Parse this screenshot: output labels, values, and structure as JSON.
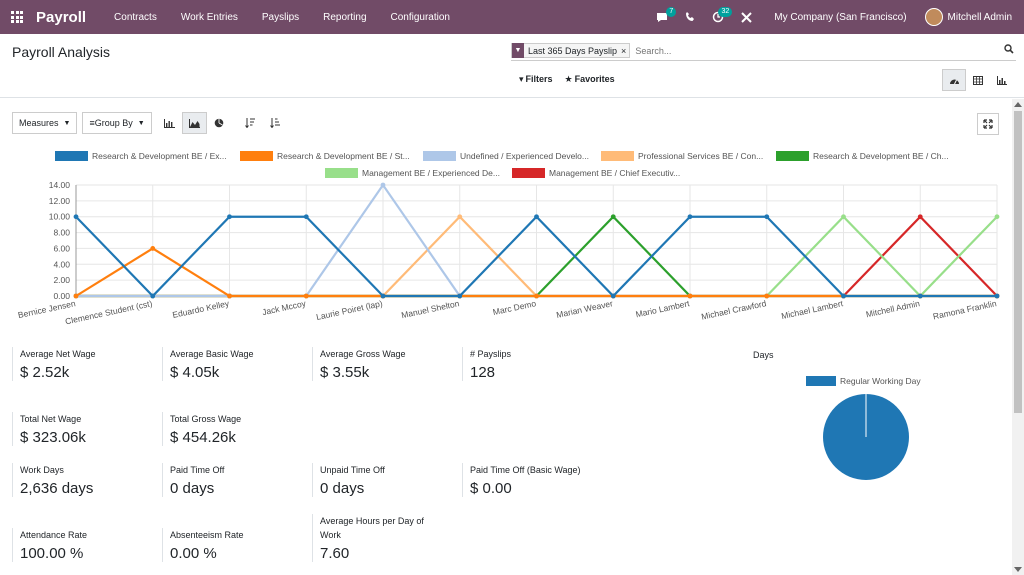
{
  "navbar": {
    "brand": "Payroll",
    "menu": [
      "Contracts",
      "Work Entries",
      "Payslips",
      "Reporting",
      "Configuration"
    ],
    "messages_badge": "7",
    "activities_badge": "32",
    "company": "My Company (San Francisco)",
    "user": "Mitchell Admin"
  },
  "control_panel": {
    "title": "Payroll Analysis",
    "facet": "Last 365 Days Payslip",
    "search_placeholder": "Search...",
    "filters_label": "Filters",
    "favorites_label": "Favorites"
  },
  "toolbar": {
    "measures_label": "Measures",
    "group_by_label": "Group By"
  },
  "chart_data": {
    "type": "line",
    "categories": [
      "Bernice Jensen",
      "Clemence Student (cst)",
      "Eduardo Kelley",
      "Jack Mccoy",
      "Laurie Poiret (lap)",
      "Manuel Shelton",
      "Marc Demo",
      "Marian Weaver",
      "Mario Lambert",
      "Michael Crawford",
      "Michael Lambert",
      "Mitchell Admin",
      "Ramona Franklin"
    ],
    "ylim": [
      0,
      14
    ],
    "yticks": [
      "0.00",
      "2.00",
      "4.00",
      "6.00",
      "8.00",
      "10.00",
      "12.00",
      "14.00"
    ],
    "grid": true,
    "legend_placement": "top",
    "series": [
      {
        "name": "Research & Development BE / Ex...",
        "color": "#1f77b4",
        "values": [
          10,
          0,
          10,
          10,
          0,
          0,
          10,
          0,
          10,
          10,
          0,
          0,
          0
        ]
      },
      {
        "name": "Research & Development BE / St...",
        "color": "#ff7f0e",
        "values": [
          0,
          6,
          0,
          0,
          0,
          0,
          0,
          0,
          0,
          0,
          0,
          0,
          0
        ]
      },
      {
        "name": "Undefined / Experienced Develo...",
        "color": "#aec7e8",
        "values": [
          0,
          0,
          0,
          0,
          14,
          0,
          0,
          0,
          0,
          0,
          0,
          0,
          0
        ]
      },
      {
        "name": "Professional Services BE / Con...",
        "color": "#ffbb78",
        "values": [
          0,
          0,
          0,
          0,
          0,
          10,
          0,
          0,
          0,
          0,
          0,
          0,
          0
        ]
      },
      {
        "name": "Research & Development BE / Ch...",
        "color": "#2ca02c",
        "values": [
          0,
          0,
          0,
          0,
          0,
          0,
          0,
          10,
          0,
          0,
          0,
          0,
          0
        ]
      },
      {
        "name": "Management BE / Experienced De...",
        "color": "#98df8a",
        "values": [
          0,
          0,
          0,
          0,
          0,
          0,
          0,
          0,
          0,
          0,
          10,
          0,
          10
        ]
      },
      {
        "name": "Management BE / Chief Executiv...",
        "color": "#d62728",
        "values": [
          0,
          0,
          0,
          0,
          0,
          0,
          0,
          0,
          0,
          0,
          0,
          10,
          0
        ]
      }
    ]
  },
  "kpis": [
    {
      "label": "Average Net Wage",
      "value": "$ 2.52k"
    },
    {
      "label": "Average Basic Wage",
      "value": "$ 4.05k"
    },
    {
      "label": "Average Gross Wage",
      "value": "$ 3.55k"
    },
    {
      "label": "# Payslips",
      "value": "128"
    },
    {
      "label": "Total Net Wage",
      "value": "$ 323.06k"
    },
    {
      "label": "Total Gross Wage",
      "value": "$ 454.26k"
    },
    {
      "label": "Work Days",
      "value": "2,636 days"
    },
    {
      "label": "Paid Time Off",
      "value": "0 days"
    },
    {
      "label": "Unpaid Time Off",
      "value": "0 days"
    },
    {
      "label": "Paid Time Off (Basic Wage)",
      "value": "$ 0.00"
    },
    {
      "label": "Attendance Rate",
      "value": "100.00 %"
    },
    {
      "label": "Absenteeism Rate",
      "value": "0.00 %"
    },
    {
      "label": "Average Hours per Day of Work",
      "value": "7.60"
    }
  ],
  "days_chart": {
    "title": "Days",
    "legend": "Regular Working Day",
    "color": "#1f77b4",
    "slices": [
      {
        "name": "Regular Working Day",
        "value": 100
      }
    ]
  }
}
